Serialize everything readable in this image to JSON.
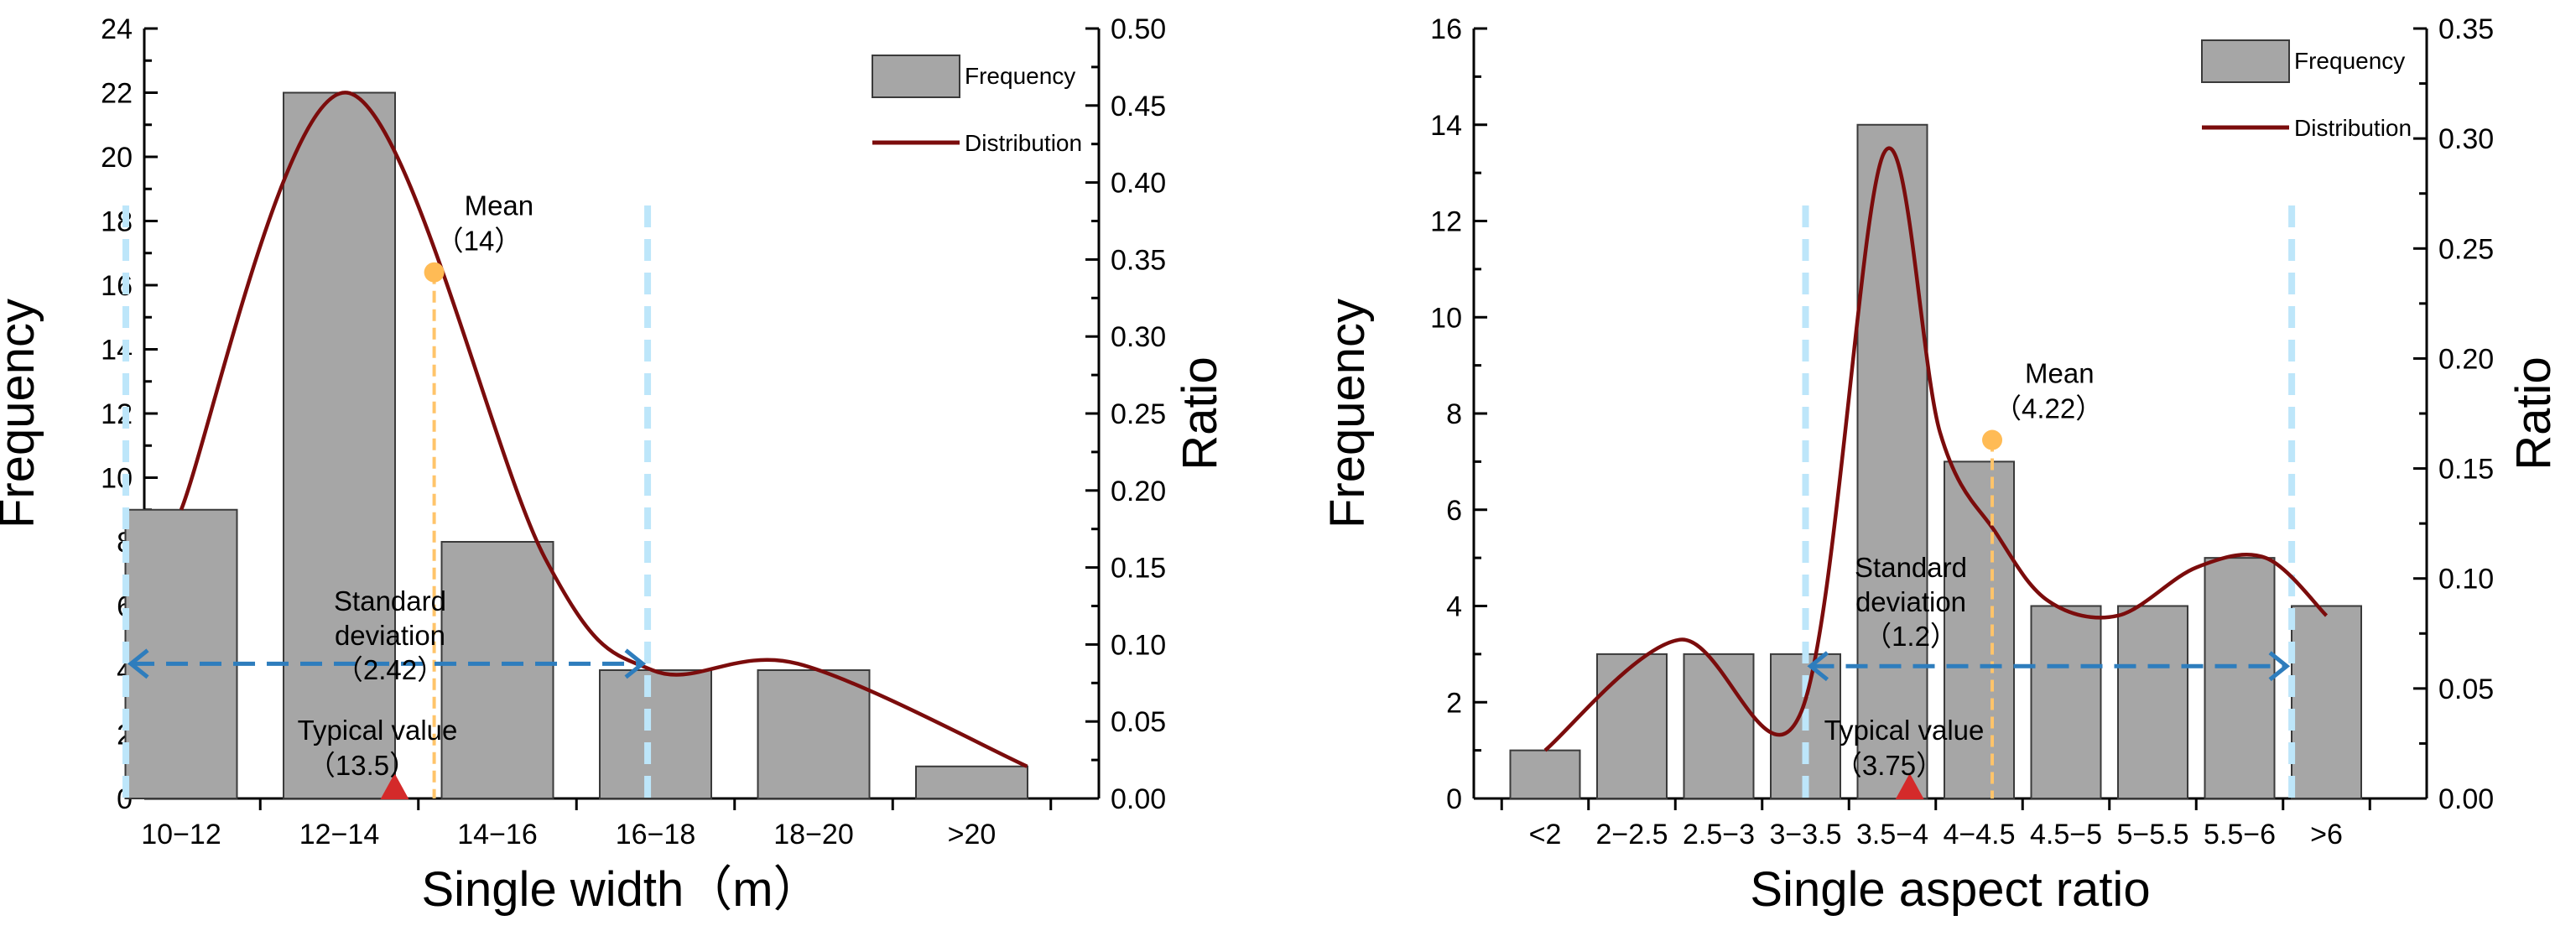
{
  "chart_data": [
    {
      "type": "bar",
      "title": "",
      "xlabel": "Single width（m）",
      "ylabel": "Frequency",
      "y2label": "Ratio",
      "categories": [
        "10−12",
        "12−14",
        "14−16",
        "16−18",
        "18−20",
        ">20"
      ],
      "series": [
        {
          "name": "Frequency",
          "type": "bar",
          "values": [
            9,
            22,
            8,
            4,
            4,
            1
          ]
        },
        {
          "name": "Distribution",
          "type": "line",
          "x": [
            0,
            1.05,
            2.3,
            2.98,
            3.9,
            5.35
          ],
          "values": [
            9,
            22,
            7.5,
            4,
            4.2,
            1
          ]
        }
      ],
      "ylim": [
        0,
        24
      ],
      "yticks": [
        "0",
        "2",
        "4",
        "6",
        "8",
        "10",
        "12",
        "14",
        "16",
        "18",
        "20",
        "22",
        "24"
      ],
      "y2lim": [
        0,
        0.5
      ],
      "y2ticks": [
        "0.00",
        "0.05",
        "0.10",
        "0.15",
        "0.20",
        "0.25",
        "0.30",
        "0.35",
        "0.40",
        "0.45",
        "0.50"
      ],
      "legend": {
        "position": "top-right",
        "bar_label": "Frequency",
        "line_label": "Distribution"
      },
      "mean": {
        "value_x": 1.6,
        "value_y": 16.4,
        "label": "Mean",
        "value_label": "（14）"
      },
      "typical": {
        "value_x": 1.35,
        "label": "Typical value",
        "value_label": "（13.5）"
      },
      "std": {
        "x_from": -0.35,
        "x_to": 2.95,
        "y": 4.2,
        "line1": "Standard",
        "line2": "deviation",
        "value_label": "（2.42）"
      },
      "colors": {
        "bar": "#a6a6a6",
        "bar_edge": "#3a3a3a",
        "curve": "#7b0c0c",
        "mean_line": "#ffc46a",
        "mean_dot": "#ffbb55",
        "std_guides": "#bde6fa",
        "std_arrow": "#2e7dbd",
        "typical_marker": "#d42a2a"
      }
    },
    {
      "type": "bar",
      "title": "",
      "xlabel": "Single aspect ratio",
      "ylabel": "Frequency",
      "y2label": "Ratio",
      "categories": [
        "<2",
        "2−2.5",
        "2.5−3",
        "3−3.5",
        "3.5−4",
        "4−4.5",
        "4.5−5",
        "5−5.5",
        "5.5−6",
        ">6"
      ],
      "series": [
        {
          "name": "Frequency",
          "type": "bar",
          "values": [
            1,
            3,
            3,
            3,
            14,
            7,
            4,
            4,
            5,
            4
          ]
        },
        {
          "name": "Distribution",
          "type": "line",
          "x": [
            0,
            1.55,
            2.95,
            3.9,
            4.55,
            5.2,
            5.8,
            6.6,
            7.5,
            8.3,
            9.0
          ],
          "values": [
            1,
            3.3,
            1.8,
            13.4,
            7.6,
            5.5,
            4.1,
            3.8,
            4.8,
            5.0,
            3.8
          ]
        }
      ],
      "ylim": [
        0,
        16
      ],
      "yticks": [
        "0",
        "2",
        "4",
        "6",
        "8",
        "10",
        "12",
        "14",
        "16"
      ],
      "y2lim": [
        0,
        0.35
      ],
      "y2ticks": [
        "0.00",
        "0.05",
        "0.10",
        "0.15",
        "0.20",
        "0.25",
        "0.30",
        "0.35"
      ],
      "legend": {
        "position": "top-right",
        "bar_label": "Frequency",
        "line_label": "Distribution"
      },
      "mean": {
        "value_x": 5.15,
        "value_y": 7.45,
        "label": "Mean",
        "value_label": "（4.22）"
      },
      "typical": {
        "value_x": 4.2,
        "label": "Typical value",
        "value_label": "（3.75）"
      },
      "std": {
        "x_from": 3.0,
        "x_to": 8.6,
        "y": 2.75,
        "line1": "Standard",
        "line2": "deviation",
        "value_label": "（1.2）"
      },
      "colors": {
        "bar": "#a6a6a6",
        "bar_edge": "#3a3a3a",
        "curve": "#7b0c0c",
        "mean_line": "#ffc46a",
        "mean_dot": "#ffbb55",
        "std_guides": "#bde6fa",
        "std_arrow": "#2e7dbd",
        "typical_marker": "#d42a2a"
      }
    }
  ]
}
